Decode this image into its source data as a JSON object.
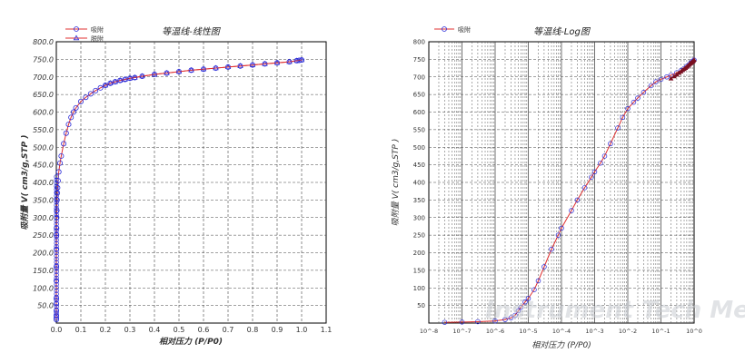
{
  "watermark": "Instrument Tech Media",
  "chart_data": [
    {
      "type": "line",
      "title": "等温线-线性图",
      "xlabel": "相对压力 (P/P0)",
      "ylabel": "吸附量 V( cm3/g,STP )",
      "xlim": [
        0.0,
        1.1
      ],
      "ylim": [
        0.0,
        800.0
      ],
      "x_scale": "linear",
      "grid": true,
      "legend_position": "top-left",
      "xticks": [
        "0.0",
        "0.1",
        "0.2",
        "0.3",
        "0.4",
        "0.5",
        "0.6",
        "0.7",
        "0.8",
        "0.9",
        "1.0",
        "1.1"
      ],
      "yticks": [
        "50.0",
        "100.0",
        "150.0",
        "200.0",
        "250.0",
        "300.0",
        "350.0",
        "400.0",
        "450.0",
        "500.0",
        "550.0",
        "600.0",
        "650.0",
        "700.0",
        "750.0",
        "800.0"
      ],
      "series": [
        {
          "name": "吸附",
          "color": "#e03030",
          "marker_color": "#2a2ad8",
          "marker": "circle",
          "x": [
            1e-05,
            2e-05,
            3e-05,
            5e-05,
            8e-05,
            0.0001,
            0.0002,
            0.0003,
            0.0005,
            0.0008,
            0.001,
            0.0015,
            0.002,
            0.003,
            0.004,
            0.005,
            0.007,
            0.01,
            0.015,
            0.02,
            0.03,
            0.04,
            0.05,
            0.06,
            0.07,
            0.08,
            0.1,
            0.12,
            0.14,
            0.16,
            0.18,
            0.2,
            0.22,
            0.24,
            0.26,
            0.28,
            0.3,
            0.32,
            0.35,
            0.4,
            0.45,
            0.5,
            0.55,
            0.6,
            0.65,
            0.7,
            0.75,
            0.8,
            0.85,
            0.9,
            0.95,
            0.98,
            0.99,
            1.0
          ],
          "y": [
            10,
            15,
            22,
            35,
            55,
            70,
            120,
            160,
            210,
            250,
            270,
            300,
            320,
            350,
            370,
            385,
            405,
            430,
            455,
            475,
            510,
            540,
            565,
            585,
            600,
            612,
            630,
            642,
            652,
            661,
            669,
            676,
            682,
            686,
            690,
            693,
            696,
            698,
            702,
            707,
            711,
            715,
            719,
            722,
            725,
            728,
            731,
            734,
            737,
            740,
            743,
            746,
            747,
            748
          ]
        },
        {
          "name": "脱附",
          "color": "#e03030",
          "marker_color": "#2a2ad8",
          "marker": "triangle",
          "x": [
            1.0,
            0.98,
            0.95,
            0.9,
            0.85,
            0.8,
            0.75,
            0.7,
            0.65,
            0.6,
            0.55,
            0.5,
            0.45,
            0.4,
            0.35,
            0.32,
            0.3,
            0.28,
            0.26,
            0.24,
            0.22,
            0.2
          ],
          "y": [
            748,
            746,
            743,
            740,
            737,
            734,
            731,
            728,
            725,
            722,
            719,
            715,
            711,
            707,
            702,
            698,
            696,
            693,
            690,
            686,
            682,
            676
          ]
        }
      ]
    },
    {
      "type": "line",
      "title": "等温线-Log图",
      "xlabel": "相对压力 (P/P0)",
      "ylabel": "吸附量 V( cm3/g,STP )",
      "xlim": [
        1e-08,
        1.0
      ],
      "ylim": [
        0,
        800
      ],
      "x_scale": "log",
      "grid": true,
      "legend_position": "top-left",
      "xticks": [
        "10^-8",
        "10^-7",
        "10^-6",
        "10^-5",
        "10^-4",
        "10^-3",
        "10^-2",
        "10^-1",
        "10^0"
      ],
      "yticks": [
        "50",
        "100",
        "150",
        "200",
        "250",
        "300",
        "350",
        "400",
        "450",
        "500",
        "550",
        "600",
        "650",
        "700",
        "750",
        "800"
      ],
      "series": [
        {
          "name": "吸附",
          "color": "#e03030",
          "marker_color": "#2a2ad8",
          "marker": "circle",
          "x": [
            3e-08,
            1e-07,
            3e-07,
            1e-06,
            2e-06,
            3e-06,
            4e-06,
            5e-06,
            6e-06,
            8e-06,
            1e-05,
            1.5e-05,
            2e-05,
            3e-05,
            5e-05,
            8e-05,
            0.0001,
            0.0002,
            0.0003,
            0.0005,
            0.0008,
            0.001,
            0.0015,
            0.002,
            0.003,
            0.005,
            0.007,
            0.01,
            0.015,
            0.02,
            0.03,
            0.05,
            0.07,
            0.1,
            0.15,
            0.2,
            0.3,
            0.4,
            0.5,
            0.6,
            0.7,
            0.8,
            0.9,
            1.0
          ],
          "y": [
            2,
            3,
            4,
            6,
            10,
            15,
            22,
            35,
            45,
            60,
            70,
            95,
            120,
            160,
            210,
            250,
            270,
            320,
            350,
            385,
            415,
            430,
            455,
            475,
            510,
            555,
            585,
            610,
            628,
            640,
            656,
            675,
            686,
            693,
            700,
            705,
            712,
            718,
            724,
            730,
            735,
            740,
            745,
            748
          ]
        },
        {
          "name": "脱附",
          "color": "#7a0f20",
          "marker_color": "#7a0f20",
          "marker": "triangle",
          "x": [
            1.0,
            0.95,
            0.9,
            0.85,
            0.8,
            0.75,
            0.7,
            0.65,
            0.6,
            0.55,
            0.5,
            0.45,
            0.4,
            0.35,
            0.3,
            0.25,
            0.2
          ],
          "y": [
            748,
            745,
            743,
            741,
            739,
            737,
            734,
            731,
            728,
            725,
            722,
            719,
            715,
            711,
            706,
            701,
            695
          ]
        }
      ]
    }
  ]
}
